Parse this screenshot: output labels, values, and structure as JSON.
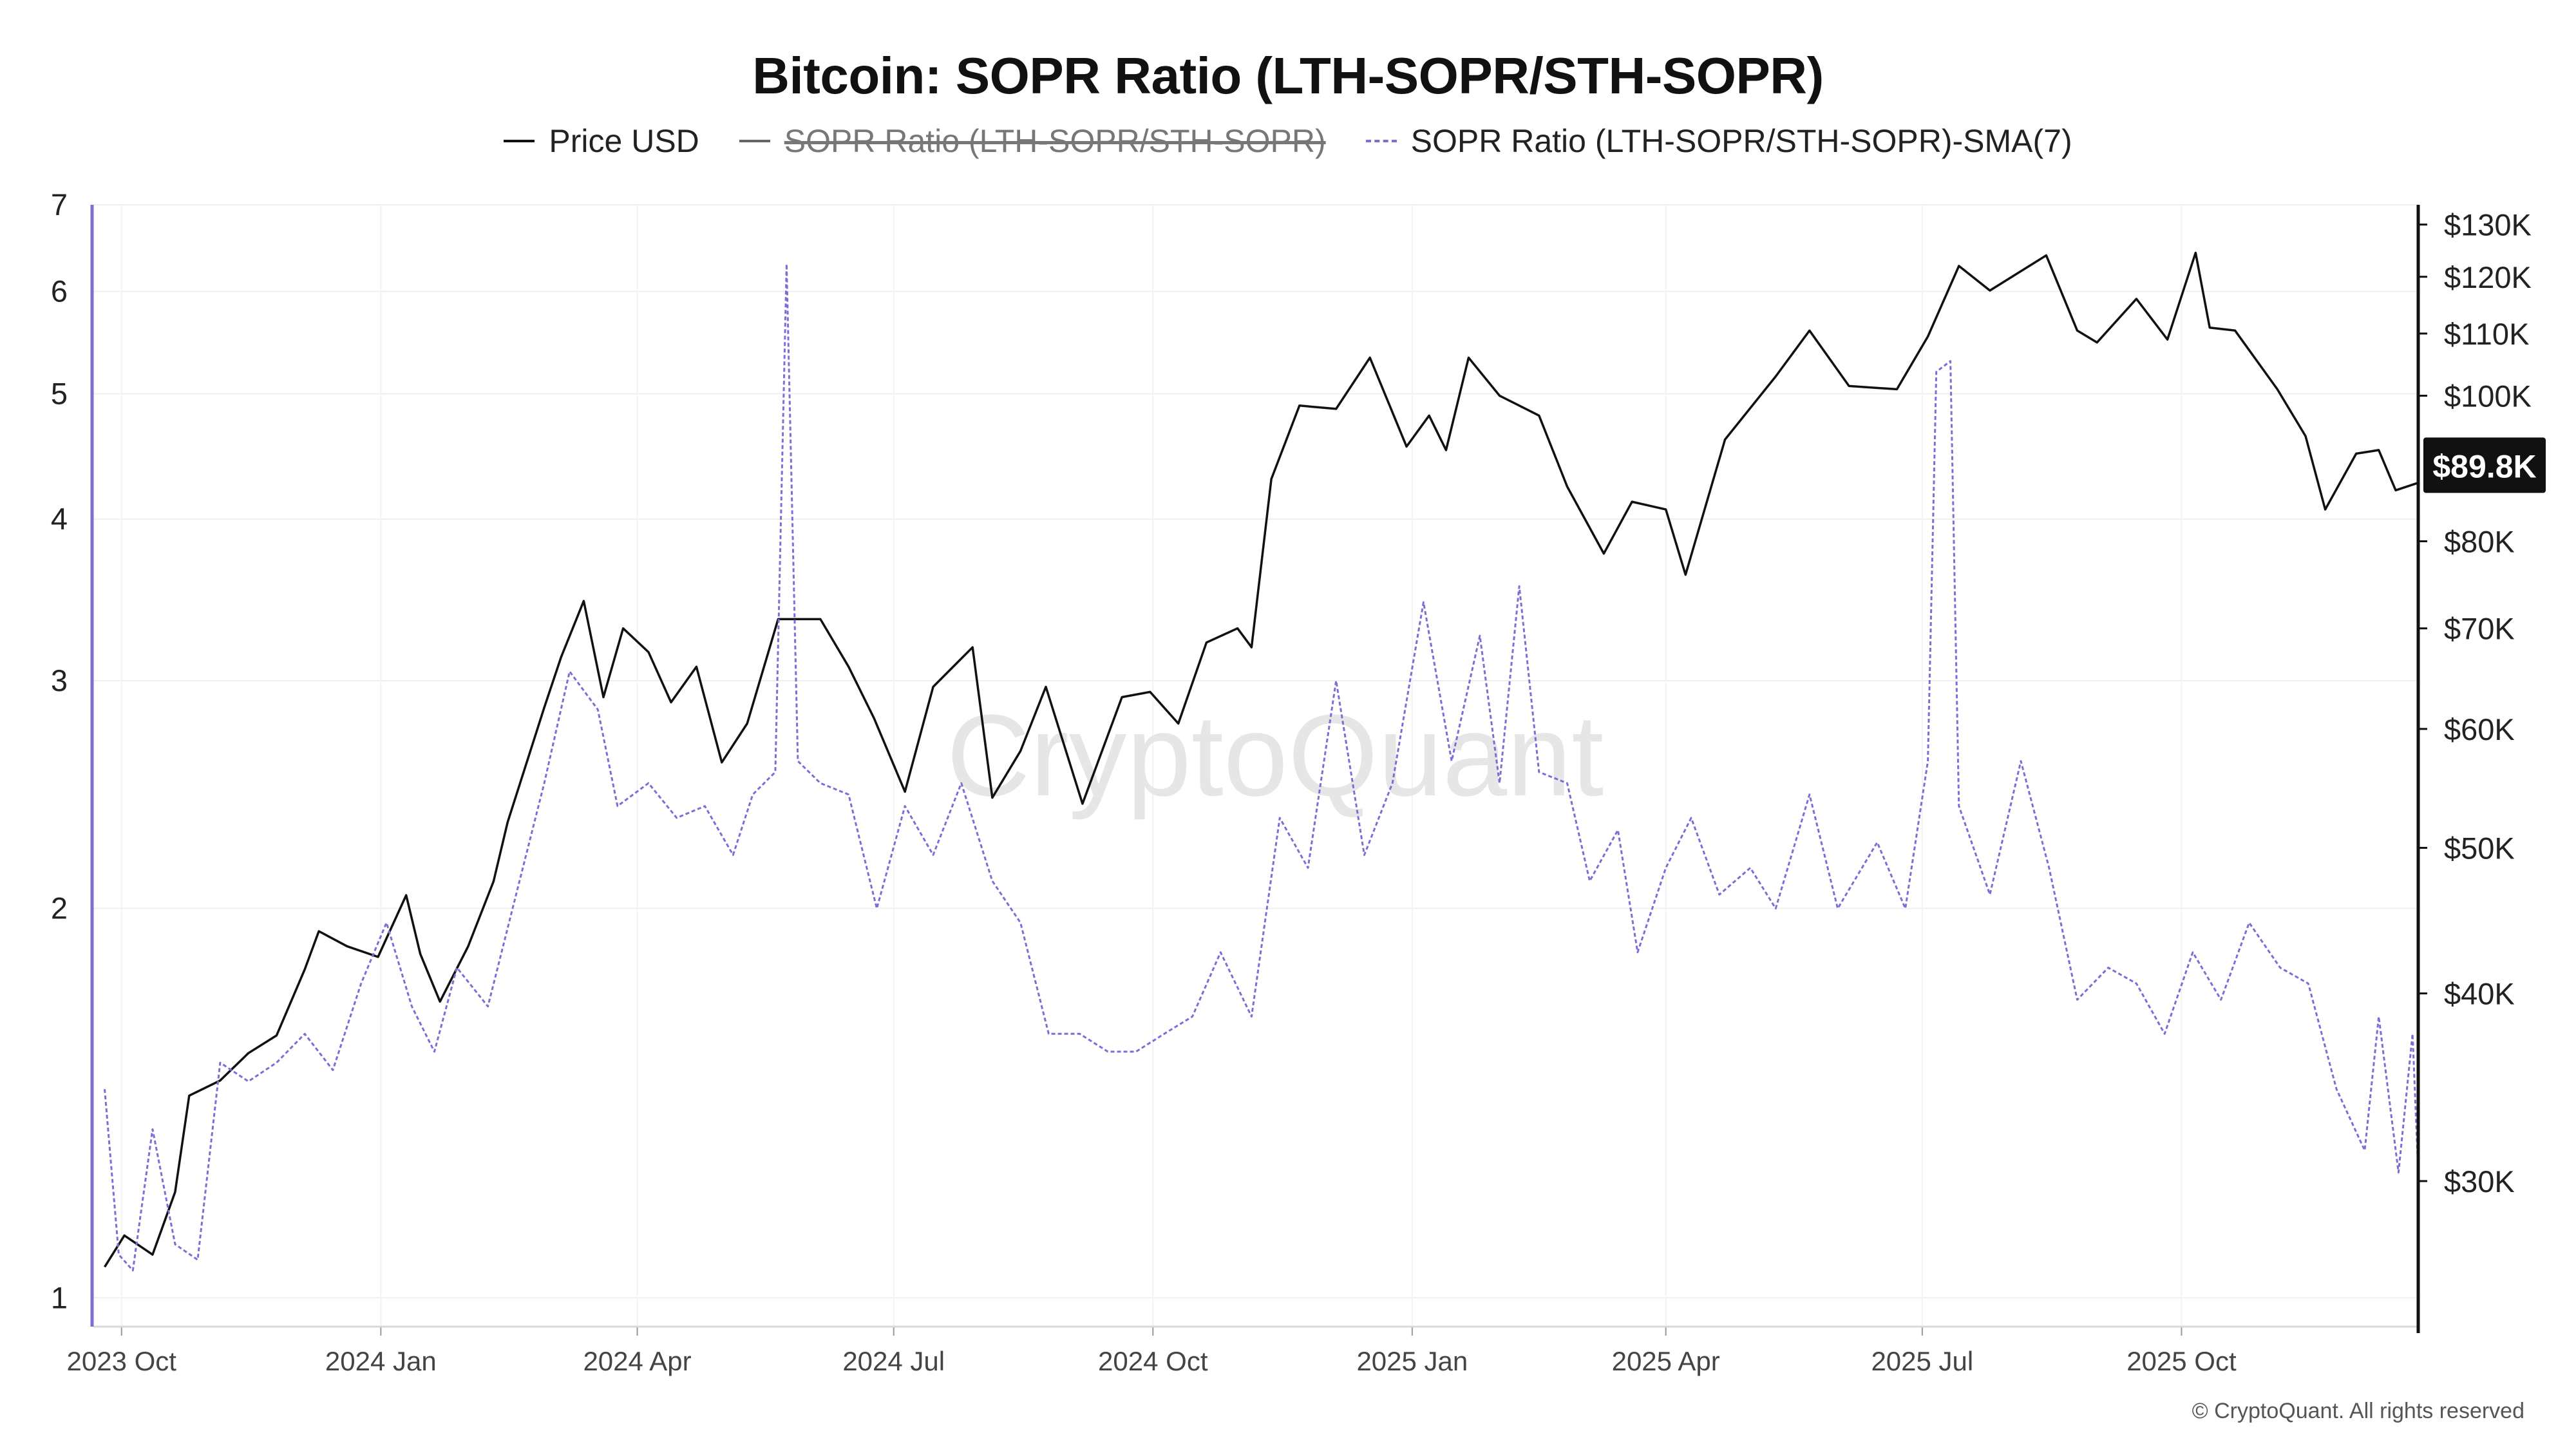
{
  "chart_data": {
    "type": "line",
    "title": "Bitcoin: SOPR Ratio (LTH-SOPR/STH-SOPR)",
    "legend": [
      {
        "label": "Price USD",
        "style": "solid",
        "color": "#111111",
        "hidden": false
      },
      {
        "label": "SOPR Ratio (LTH-SOPR/STH-SOPR)",
        "style": "solid",
        "color": "#666666",
        "hidden": true
      },
      {
        "label": "SOPR Ratio (LTH-SOPR/STH-SOPR)-SMA(7)",
        "style": "dashed",
        "color": "#7b6fd6",
        "hidden": false
      }
    ],
    "legend_position": "top-center",
    "x_ticks": [
      "2023 Oct",
      "2024 Jan",
      "2024 Apr",
      "2024 Jul",
      "2024 Oct",
      "2025 Jan",
      "2025 Apr",
      "2025 Jul",
      "2025 Oct"
    ],
    "x_range": [
      "2023-09-21",
      "2025-12-24"
    ],
    "left_axis": {
      "scale": "log",
      "range": [
        0.95,
        7
      ],
      "ticks": [
        1,
        2,
        3,
        4,
        5,
        6,
        7
      ]
    },
    "right_axis": {
      "scale": "log",
      "unit": "USD",
      "range": [
        24000,
        134000
      ],
      "ticks": [
        {
          "v": 30000,
          "label": "$30K"
        },
        {
          "v": 40000,
          "label": "$40K"
        },
        {
          "v": 50000,
          "label": "$50K"
        },
        {
          "v": 60000,
          "label": "$60K"
        },
        {
          "v": 70000,
          "label": "$70K"
        },
        {
          "v": 80000,
          "label": "$80K"
        },
        {
          "v": 100000,
          "label": "$100K"
        },
        {
          "v": 110000,
          "label": "$110K"
        },
        {
          "v": 120000,
          "label": "$120K"
        },
        {
          "v": 130000,
          "label": "$130K"
        }
      ]
    },
    "current_price_label": "$89.8K",
    "current_price": 89800,
    "grid": true,
    "series": [
      {
        "name": "Price USD",
        "axis": "right",
        "points": [
          [
            "2023-09-25",
            26300
          ],
          [
            "2023-10-02",
            27600
          ],
          [
            "2023-10-12",
            26800
          ],
          [
            "2023-10-20",
            29500
          ],
          [
            "2023-10-25",
            34200
          ],
          [
            "2023-11-05",
            35000
          ],
          [
            "2023-11-15",
            36500
          ],
          [
            "2023-11-25",
            37500
          ],
          [
            "2023-12-05",
            41500
          ],
          [
            "2023-12-10",
            44000
          ],
          [
            "2023-12-20",
            43000
          ],
          [
            "2023-12-31",
            42300
          ],
          [
            "2024-01-10",
            46500
          ],
          [
            "2024-01-15",
            42500
          ],
          [
            "2024-01-22",
            39500
          ],
          [
            "2024-02-01",
            43000
          ],
          [
            "2024-02-10",
            47500
          ],
          [
            "2024-02-15",
            52000
          ],
          [
            "2024-02-28",
            62000
          ],
          [
            "2024-03-05",
            67000
          ],
          [
            "2024-03-13",
            73000
          ],
          [
            "2024-03-20",
            63000
          ],
          [
            "2024-03-27",
            70000
          ],
          [
            "2024-04-05",
            67500
          ],
          [
            "2024-04-13",
            62500
          ],
          [
            "2024-04-22",
            66000
          ],
          [
            "2024-05-01",
            57000
          ],
          [
            "2024-05-10",
            60500
          ],
          [
            "2024-05-21",
            71000
          ],
          [
            "2024-06-05",
            71000
          ],
          [
            "2024-06-15",
            66000
          ],
          [
            "2024-06-24",
            61000
          ],
          [
            "2024-07-05",
            54500
          ],
          [
            "2024-07-15",
            64000
          ],
          [
            "2024-07-29",
            68000
          ],
          [
            "2024-08-05",
            54000
          ],
          [
            "2024-08-15",
            58000
          ],
          [
            "2024-08-24",
            64000
          ],
          [
            "2024-09-06",
            53500
          ],
          [
            "2024-09-20",
            63000
          ],
          [
            "2024-09-30",
            63500
          ],
          [
            "2024-10-10",
            60500
          ],
          [
            "2024-10-20",
            68500
          ],
          [
            "2024-10-31",
            70000
          ],
          [
            "2024-11-05",
            68000
          ],
          [
            "2024-11-12",
            88000
          ],
          [
            "2024-11-22",
            98500
          ],
          [
            "2024-12-05",
            98000
          ],
          [
            "2024-12-17",
            106000
          ],
          [
            "2024-12-30",
            92500
          ],
          [
            "2025-01-07",
            97000
          ],
          [
            "2025-01-13",
            92000
          ],
          [
            "2025-01-21",
            106000
          ],
          [
            "2025-02-01",
            100000
          ],
          [
            "2025-02-15",
            97000
          ],
          [
            "2025-02-25",
            87000
          ],
          [
            "2025-03-10",
            78500
          ],
          [
            "2025-03-20",
            85000
          ],
          [
            "2025-04-01",
            84000
          ],
          [
            "2025-04-08",
            76000
          ],
          [
            "2025-04-22",
            93500
          ],
          [
            "2025-05-10",
            103000
          ],
          [
            "2025-05-22",
            110500
          ],
          [
            "2025-06-05",
            101500
          ],
          [
            "2025-06-22",
            101000
          ],
          [
            "2025-07-03",
            109500
          ],
          [
            "2025-07-14",
            122000
          ],
          [
            "2025-07-25",
            117500
          ],
          [
            "2025-08-14",
            124000
          ],
          [
            "2025-08-25",
            110500
          ],
          [
            "2025-09-01",
            108500
          ],
          [
            "2025-09-15",
            116000
          ],
          [
            "2025-09-26",
            109000
          ],
          [
            "2025-10-06",
            124500
          ],
          [
            "2025-10-11",
            111000
          ],
          [
            "2025-10-20",
            110500
          ],
          [
            "2025-11-04",
            101000
          ],
          [
            "2025-11-14",
            94000
          ],
          [
            "2025-11-21",
            84000
          ],
          [
            "2025-12-02",
            91500
          ],
          [
            "2025-12-10",
            92000
          ],
          [
            "2025-12-16",
            86500
          ],
          [
            "2025-12-24",
            87500
          ]
        ]
      },
      {
        "name": "SOPR Ratio (LTH-SOPR/STH-SOPR)-SMA(7)",
        "axis": "left",
        "points": [
          [
            "2023-09-25",
            1.45
          ],
          [
            "2023-09-30",
            1.08
          ],
          [
            "2023-10-05",
            1.05
          ],
          [
            "2023-10-12",
            1.35
          ],
          [
            "2023-10-20",
            1.1
          ],
          [
            "2023-10-28",
            1.07
          ],
          [
            "2023-11-05",
            1.52
          ],
          [
            "2023-11-15",
            1.47
          ],
          [
            "2023-11-25",
            1.52
          ],
          [
            "2023-12-05",
            1.6
          ],
          [
            "2023-12-15",
            1.5
          ],
          [
            "2023-12-25",
            1.75
          ],
          [
            "2024-01-03",
            1.95
          ],
          [
            "2024-01-12",
            1.68
          ],
          [
            "2024-01-20",
            1.55
          ],
          [
            "2024-01-28",
            1.8
          ],
          [
            "2024-02-08",
            1.68
          ],
          [
            "2024-02-18",
            2.05
          ],
          [
            "2024-02-28",
            2.5
          ],
          [
            "2024-03-08",
            3.05
          ],
          [
            "2024-03-18",
            2.85
          ],
          [
            "2024-03-25",
            2.4
          ],
          [
            "2024-04-05",
            2.5
          ],
          [
            "2024-04-15",
            2.35
          ],
          [
            "2024-04-25",
            2.4
          ],
          [
            "2024-05-05",
            2.2
          ],
          [
            "2024-05-12",
            2.45
          ],
          [
            "2024-05-20",
            2.55
          ],
          [
            "2024-05-24",
            6.3
          ],
          [
            "2024-05-28",
            2.6
          ],
          [
            "2024-06-05",
            2.5
          ],
          [
            "2024-06-15",
            2.45
          ],
          [
            "2024-06-25",
            2.0
          ],
          [
            "2024-07-05",
            2.4
          ],
          [
            "2024-07-15",
            2.2
          ],
          [
            "2024-07-25",
            2.5
          ],
          [
            "2024-08-05",
            2.1
          ],
          [
            "2024-08-15",
            1.95
          ],
          [
            "2024-08-25",
            1.6
          ],
          [
            "2024-09-05",
            1.6
          ],
          [
            "2024-09-15",
            1.55
          ],
          [
            "2024-09-25",
            1.55
          ],
          [
            "2024-10-05",
            1.6
          ],
          [
            "2024-10-15",
            1.65
          ],
          [
            "2024-10-25",
            1.85
          ],
          [
            "2024-11-05",
            1.65
          ],
          [
            "2024-11-15",
            2.35
          ],
          [
            "2024-11-25",
            2.15
          ],
          [
            "2024-12-05",
            3.0
          ],
          [
            "2024-12-15",
            2.2
          ],
          [
            "2024-12-25",
            2.5
          ],
          [
            "2025-01-05",
            3.45
          ],
          [
            "2025-01-15",
            2.6
          ],
          [
            "2025-01-25",
            3.25
          ],
          [
            "2025-02-01",
            2.5
          ],
          [
            "2025-02-08",
            3.55
          ],
          [
            "2025-02-15",
            2.55
          ],
          [
            "2025-02-25",
            2.5
          ],
          [
            "2025-03-05",
            2.1
          ],
          [
            "2025-03-15",
            2.3
          ],
          [
            "2025-03-22",
            1.85
          ],
          [
            "2025-04-01",
            2.15
          ],
          [
            "2025-04-10",
            2.35
          ],
          [
            "2025-04-20",
            2.05
          ],
          [
            "2025-05-01",
            2.15
          ],
          [
            "2025-05-10",
            2.0
          ],
          [
            "2025-05-22",
            2.45
          ],
          [
            "2025-06-01",
            2.0
          ],
          [
            "2025-06-15",
            2.25
          ],
          [
            "2025-06-25",
            2.0
          ],
          [
            "2025-07-03",
            2.6
          ],
          [
            "2025-07-06",
            5.2
          ],
          [
            "2025-07-11",
            5.3
          ],
          [
            "2025-07-14",
            2.4
          ],
          [
            "2025-07-25",
            2.05
          ],
          [
            "2025-08-05",
            2.6
          ],
          [
            "2025-08-15",
            2.15
          ],
          [
            "2025-08-25",
            1.7
          ],
          [
            "2025-09-05",
            1.8
          ],
          [
            "2025-09-15",
            1.75
          ],
          [
            "2025-09-25",
            1.6
          ],
          [
            "2025-10-05",
            1.85
          ],
          [
            "2025-10-15",
            1.7
          ],
          [
            "2025-10-25",
            1.95
          ],
          [
            "2025-11-05",
            1.8
          ],
          [
            "2025-11-15",
            1.75
          ],
          [
            "2025-11-25",
            1.45
          ],
          [
            "2025-12-05",
            1.3
          ],
          [
            "2025-12-10",
            1.65
          ],
          [
            "2025-12-17",
            1.25
          ],
          [
            "2025-12-22",
            1.6
          ],
          [
            "2025-12-24",
            1.25
          ]
        ]
      }
    ]
  },
  "watermark": "CryptoQuant",
  "copyright": "© CryptoQuant. All rights reserved"
}
